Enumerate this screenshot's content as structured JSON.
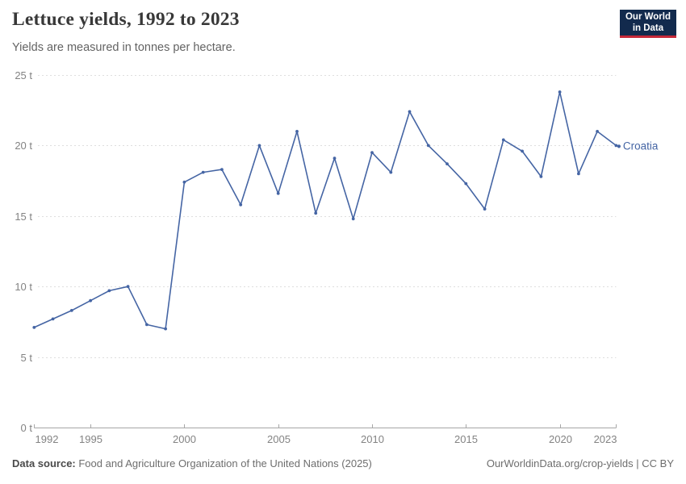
{
  "header": {
    "title": "Lettuce yields, 1992 to 2023",
    "subtitle": "Yields are measured in tonnes per hectare.",
    "logo_line1": "Our World",
    "logo_line2": "in Data"
  },
  "chart_data": {
    "type": "line",
    "title": "Lettuce yields, 1992 to 2023",
    "ylabel": "tonnes per hectare",
    "xlim": [
      1992,
      2023
    ],
    "ylim": [
      0,
      25
    ],
    "x_ticks": [
      1992,
      1995,
      2000,
      2005,
      2010,
      2015,
      2020,
      2023
    ],
    "y_ticks": [
      0,
      5,
      10,
      15,
      20,
      25
    ],
    "y_tick_format": "{v} t",
    "grid": "horizontal-dashed",
    "legend_position": "end-of-line-label",
    "series": [
      {
        "name": "Croatia",
        "color": "#4565a4",
        "x": [
          1992,
          1993,
          1994,
          1995,
          1996,
          1997,
          1998,
          1999,
          2000,
          2001,
          2002,
          2003,
          2004,
          2005,
          2006,
          2007,
          2008,
          2009,
          2010,
          2011,
          2012,
          2013,
          2014,
          2015,
          2016,
          2017,
          2018,
          2019,
          2020,
          2021,
          2022,
          2023
        ],
        "values": [
          7.1,
          7.7,
          8.3,
          9.0,
          9.7,
          10.0,
          7.3,
          7.0,
          17.4,
          18.1,
          18.3,
          15.8,
          20.0,
          16.6,
          21.0,
          15.2,
          19.1,
          14.8,
          19.5,
          18.1,
          22.4,
          20.0,
          18.7,
          17.3,
          15.5,
          20.4,
          19.6,
          17.8,
          23.8,
          18.0,
          21.0,
          20.0
        ]
      }
    ]
  },
  "colors": {
    "accent_line": "#4565a4",
    "grid": "#dedede",
    "axis": "#a7a7a7",
    "tick_text": "#838383",
    "logo_bg": "#122a4d",
    "logo_stripe": "#c52838"
  },
  "footer": {
    "source_label": "Data source:",
    "source_text": " Food and Agriculture Organization of the United Nations (2025)",
    "credit": "OurWorldinData.org/crop-yields | CC BY"
  }
}
